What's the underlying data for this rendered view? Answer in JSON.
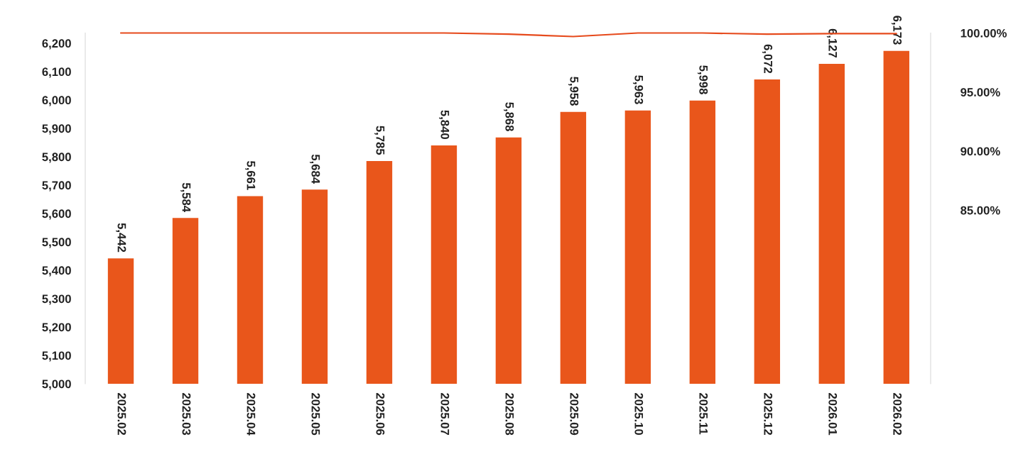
{
  "chart_data": {
    "type": "bar",
    "categories": [
      "2025.02",
      "2025.03",
      "2025.04",
      "2025.05",
      "2025.06",
      "2025.07",
      "2025.08",
      "2025.09",
      "2025.10",
      "2025.11",
      "2025.12",
      "2026.01",
      "2026.02"
    ],
    "series": [
      {
        "color": "#e9561b",
        "values": [
          5442,
          5584,
          5661,
          5684,
          5785,
          5840,
          5868,
          5958,
          5963,
          5998,
          6072,
          6127,
          6173
        ],
        "value_labels": [
          "5,442",
          "5,584",
          "5,661",
          "5,684",
          "5,785",
          "5,840",
          "5,868",
          "5,958",
          "5,963",
          "5,998",
          "6,072",
          "6,127",
          "6,173"
        ]
      },
      {
        "type": "line",
        "axis": "y2",
        "color": "#e64a1c",
        "values": [
          100,
          100,
          100,
          100,
          100,
          100,
          99.9,
          99.7,
          100,
          100,
          99.9,
          99.95,
          99.95
        ]
      }
    ],
    "ylim": [
      5000,
      6236
    ],
    "yticks": [
      {
        "value": 5000,
        "label": "5,000"
      },
      {
        "value": 5100,
        "label": "5,100"
      },
      {
        "value": 5200,
        "label": "5,200"
      },
      {
        "value": 5300,
        "label": "5,300"
      },
      {
        "value": 5400,
        "label": "5,400"
      },
      {
        "value": 5500,
        "label": "5,500"
      },
      {
        "value": 5600,
        "label": "5,600"
      },
      {
        "value": 5700,
        "label": "5,700"
      },
      {
        "value": 5800,
        "label": "5,800"
      },
      {
        "value": 5900,
        "label": "5,900"
      },
      {
        "value": 6000,
        "label": "6,000"
      },
      {
        "value": 6100,
        "label": "6,100"
      },
      {
        "value": 6200,
        "label": "6,200"
      }
    ],
    "y2lim": [
      70.3,
      100
    ],
    "y2ticks": [
      {
        "value": 85,
        "label": "85.00%"
      },
      {
        "value": 90,
        "label": "90.00%"
      },
      {
        "value": 95,
        "label": "95.00%"
      },
      {
        "value": 100,
        "label": "100.00%"
      }
    ],
    "grid": false,
    "marker": "none"
  }
}
